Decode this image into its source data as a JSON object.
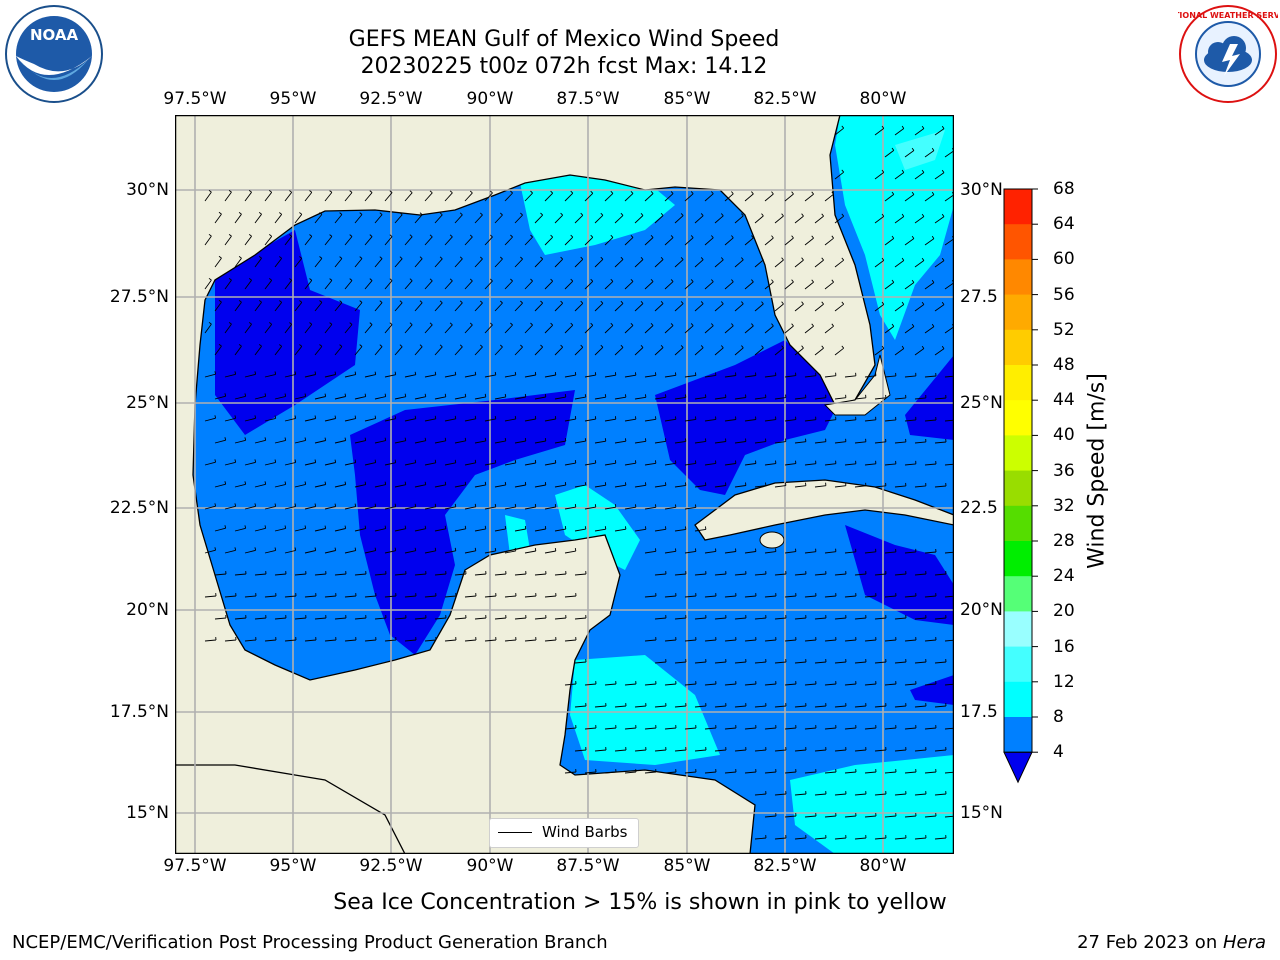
{
  "title": "GEFS MEAN Gulf of Mexico Wind Speed",
  "subtitle": "20230225 t00z 072h fcst   Max: 14.12",
  "footer_note": "Sea Ice Concentration > 15% is shown in pink to yellow",
  "footer_left": "NCEP/EMC/Verification Post Processing Product Generation Branch",
  "footer_right": {
    "date": "27 Feb 2023 on ",
    "host": "Hera"
  },
  "legend": {
    "label": "Wind Barbs"
  },
  "logos": {
    "left": "NOAA",
    "right": "NATIONAL WEATHER SERVICE"
  },
  "map": {
    "lon_labels": [
      "97.5°W",
      "95°W",
      "92.5°W",
      "90°W",
      "87.5°W",
      "85°W",
      "82.5°W",
      "80°W"
    ],
    "lat_labels_left": [
      "30°N",
      "27.5°N",
      "25°N",
      "22.5°N",
      "20°N",
      "17.5°N",
      "15°N"
    ],
    "lat_labels_right": [
      "30°N",
      "27.5",
      "25°N",
      "22.5",
      "20°N",
      "17.5",
      "15°N"
    ],
    "land_color": "#efefdc",
    "grid_color": "#b0b0b0"
  },
  "colorbar": {
    "title": "Wind Speed [m/s]",
    "ticks": [
      "4",
      "8",
      "12",
      "16",
      "20",
      "24",
      "28",
      "32",
      "36",
      "40",
      "44",
      "48",
      "52",
      "56",
      "60",
      "64",
      "68"
    ],
    "colors": [
      "#0000ee",
      "#0080ff",
      "#00ffff",
      "#44ffff",
      "#99ffff",
      "#55ff77",
      "#00ee00",
      "#55dd00",
      "#99dd00",
      "#ccff00",
      "#ffff00",
      "#ffee00",
      "#ffcc00",
      "#ffaa00",
      "#ff8800",
      "#ff5500",
      "#ff2200",
      "#ff0000"
    ]
  }
}
